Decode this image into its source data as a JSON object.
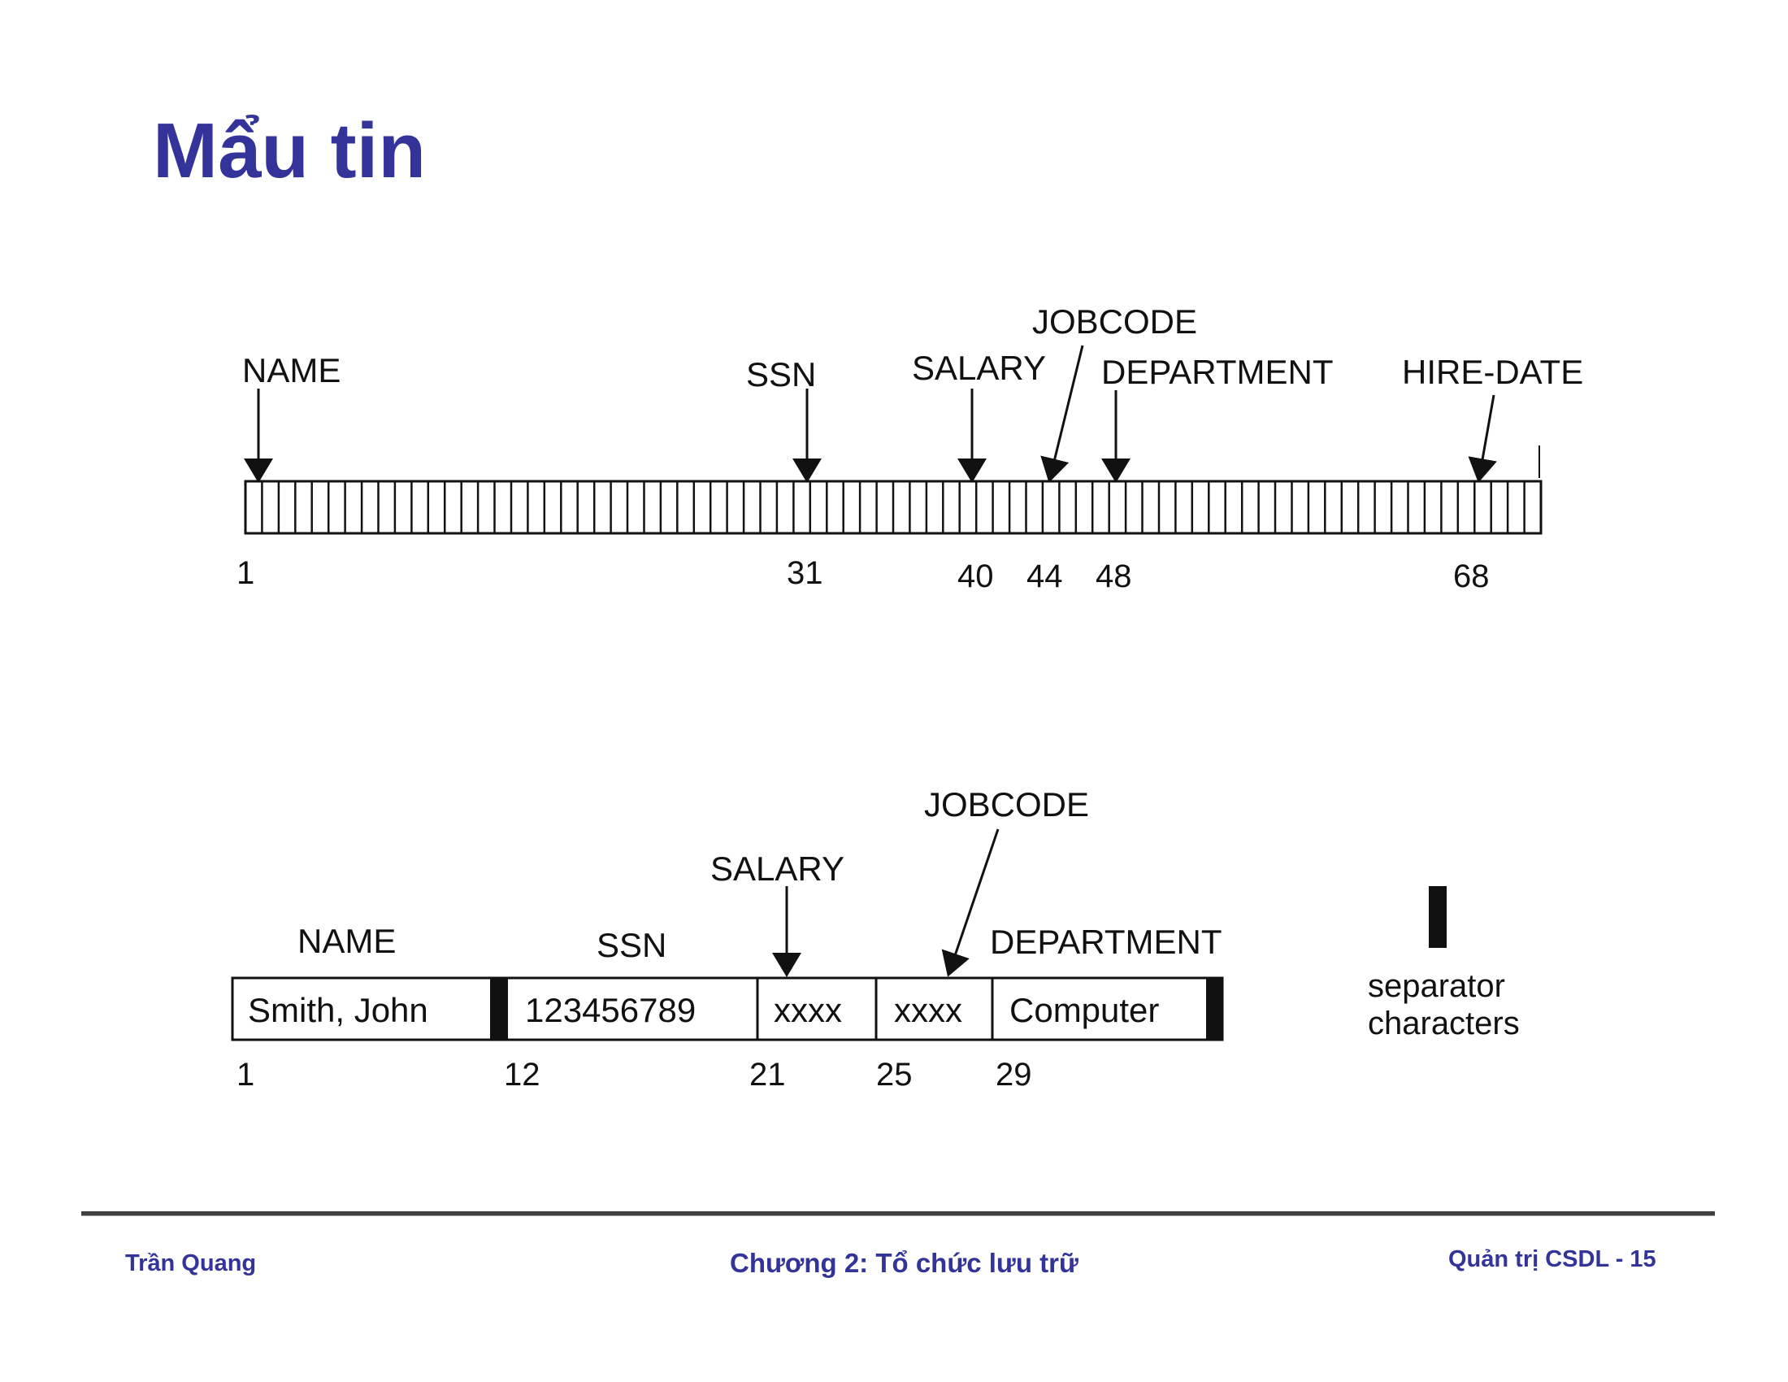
{
  "slide": {
    "title": "Mẩu tin"
  },
  "fixed_record": {
    "field_labels": {
      "name": "NAME",
      "ssn": "SSN",
      "salary": "SALARY",
      "jobcode": "JOBCODE",
      "department": "DEPARTMENT",
      "hire_date": "HIRE-DATE"
    },
    "positions": [
      "1",
      "31",
      "40",
      "44",
      "48",
      "68"
    ]
  },
  "variable_record": {
    "field_labels": {
      "name": "NAME",
      "ssn": "SSN",
      "salary": "SALARY",
      "jobcode": "JOBCODE",
      "department": "DEPARTMENT"
    },
    "values": {
      "name": "Smith, John",
      "ssn": "123456789",
      "salary": "xxxx",
      "jobcode": "xxxx",
      "department": "Computer"
    },
    "positions": [
      "1",
      "12",
      "21",
      "25",
      "29"
    ]
  },
  "legend": {
    "line1": "separator",
    "line2": "characters"
  },
  "footer": {
    "author": "Trần Quang",
    "chapter": "Chương 2: Tổ chức lưu trữ",
    "course_page": "Quản trị CSDL - 15"
  },
  "colors": {
    "title": "#333399",
    "footer_text": "#333399",
    "ink": "#111111"
  }
}
